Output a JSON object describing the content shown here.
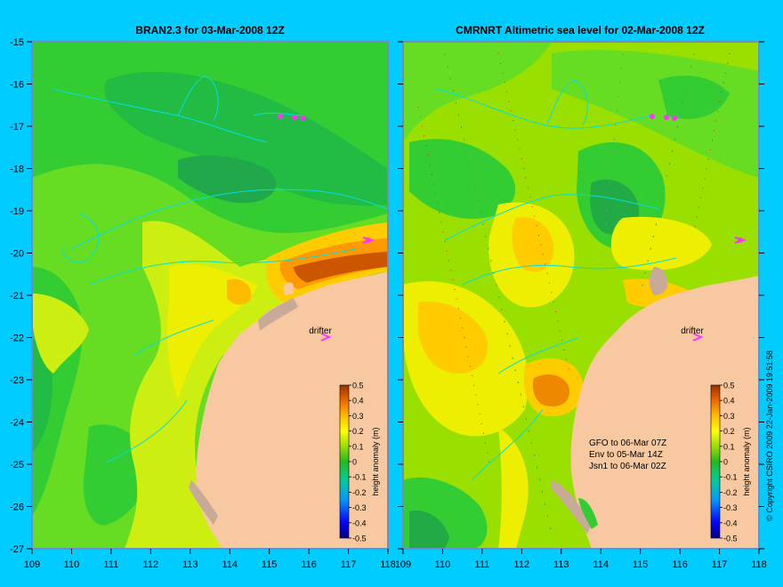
{
  "panels": [
    {
      "title": "BRAN2.3 for 03-Mar-2008 12Z",
      "drifter_label": "drifter",
      "passes": []
    },
    {
      "title": "CMRNRT Altimetric sea level  for 02-Mar-2008 12Z",
      "drifter_label": "drifter",
      "passes": [
        "GFO to 06-Mar 07Z",
        "Env to 05-Mar 14Z",
        "Jsn1 to 06-Mar 02Z"
      ]
    }
  ],
  "axes": {
    "x_ticks": [
      "109",
      "110",
      "111",
      "112",
      "113",
      "114",
      "115",
      "116",
      "117",
      "118"
    ],
    "y_ticks": [
      "-15",
      "-16",
      "-17",
      "-18",
      "-19",
      "-20",
      "-21",
      "-22",
      "-23",
      "-24",
      "-25",
      "-26",
      "-27"
    ]
  },
  "colorbar": {
    "label": "height anomaly (m)",
    "ticks": [
      "0.5",
      "0.4",
      "0.3",
      "0.2",
      "0.1",
      "0",
      "-0.1",
      "-0.2",
      "-0.3",
      "-0.4",
      "-0.5"
    ]
  },
  "copyright": "© Copyright CSIRO 2009  22-Jan-2009 19:51:58",
  "colors": {
    "background": "#00ccff",
    "land": "#f8c9a0",
    "coastline": "#00e0e0",
    "drifter": "#ff33ff"
  }
}
